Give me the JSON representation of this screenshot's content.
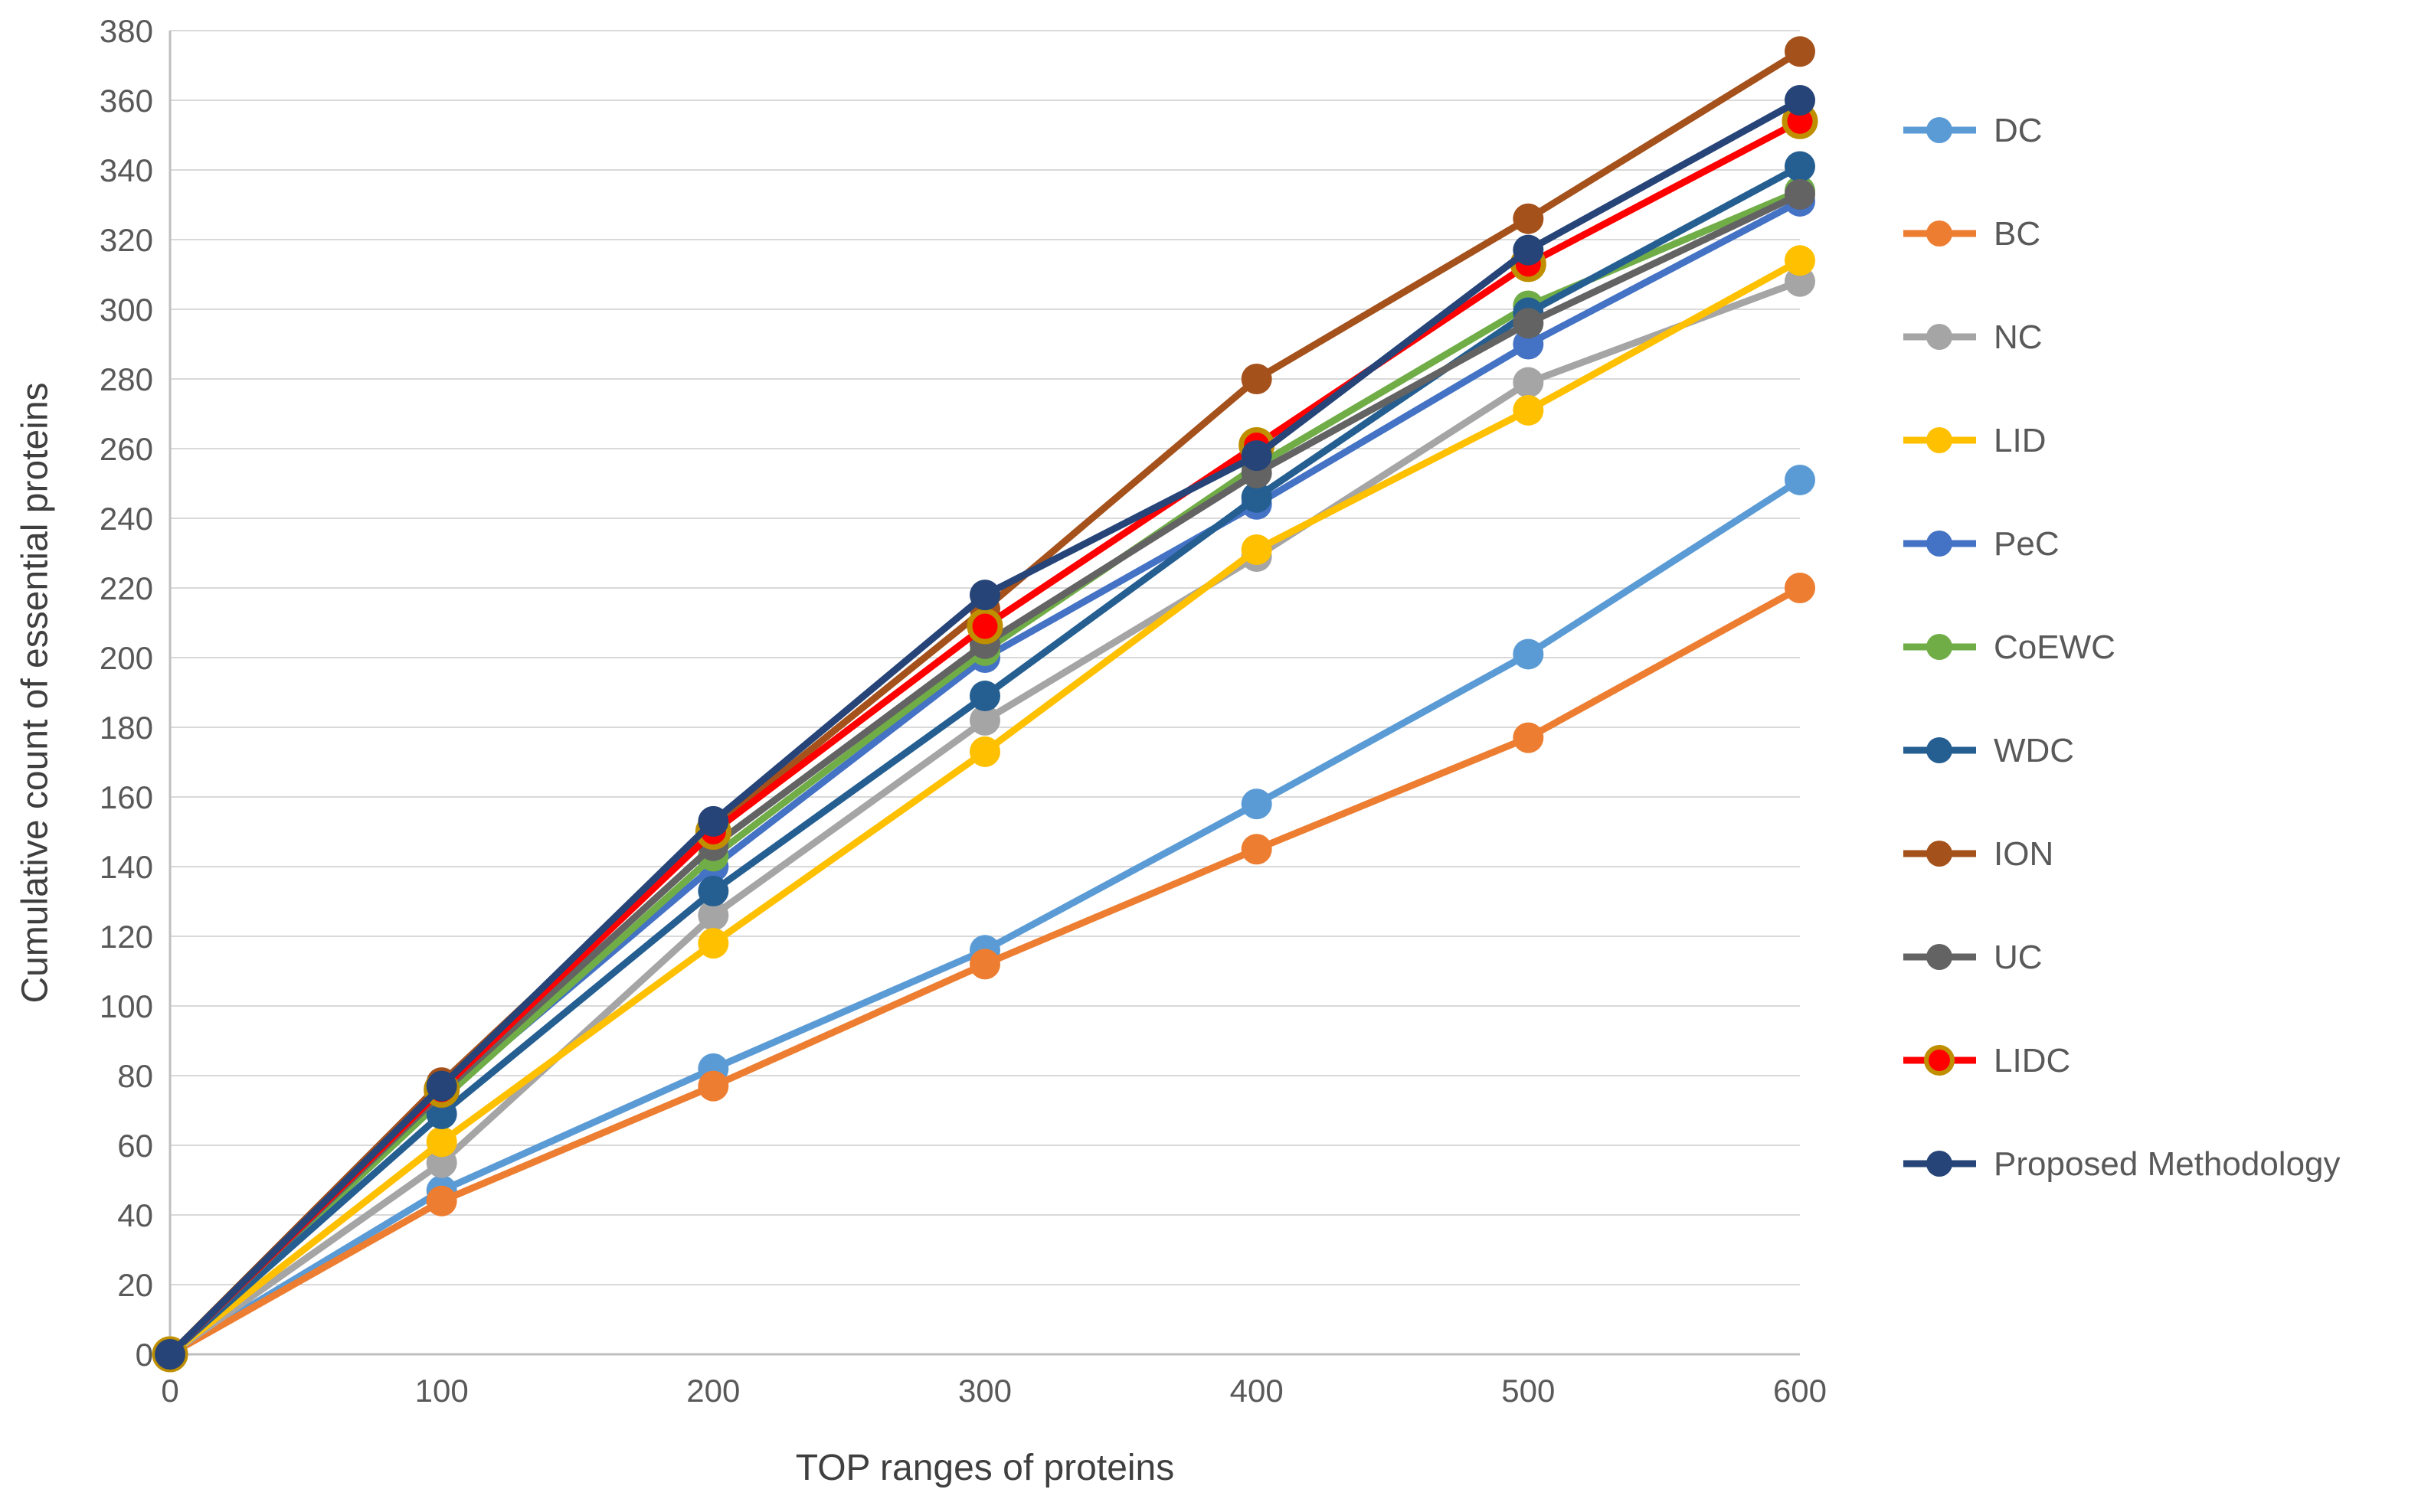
{
  "figure": {
    "kind": "excel-style line chart, no title, legend right"
  },
  "axes": {
    "x_title": "TOP ranges of proteins",
    "y_title": "Cumulative count of essential proteins",
    "x_ticks": [
      0,
      100,
      200,
      300,
      400,
      500,
      600
    ],
    "y_ticks": [
      0,
      20,
      40,
      60,
      80,
      100,
      120,
      140,
      160,
      180,
      200,
      220,
      240,
      260,
      280,
      300,
      320,
      340,
      360,
      380
    ],
    "grid_color": "#d9d9d9",
    "axis_line_color": "#bfbfbf",
    "tick_text_color": "#595959"
  },
  "legend": {
    "position": "right",
    "items": [
      "DC",
      "BC",
      "NC",
      "LID",
      "PeC",
      "CoEWC",
      "WDC",
      "ION",
      "UC",
      "LIDC",
      "Proposed Methodology"
    ]
  },
  "chart_data": {
    "type": "line",
    "title": "",
    "xlabel": "TOP ranges of proteins",
    "ylabel": "Cumulative count of essential proteins",
    "xlim": [
      0,
      600
    ],
    "ylim": [
      0,
      380
    ],
    "grid": true,
    "legend_position": "right",
    "x": [
      0,
      100,
      200,
      300,
      400,
      500,
      600
    ],
    "series": [
      {
        "name": "DC",
        "color": "#5B9BD5",
        "values": [
          0,
          47,
          82,
          116,
          158,
          201,
          251
        ]
      },
      {
        "name": "BC",
        "color": "#ED7D31",
        "values": [
          0,
          44,
          77,
          112,
          145,
          177,
          220
        ]
      },
      {
        "name": "NC",
        "color": "#A5A5A5",
        "values": [
          0,
          55,
          126,
          182,
          229,
          279,
          308
        ]
      },
      {
        "name": "LID",
        "color": "#FFC000",
        "values": [
          0,
          61,
          118,
          173,
          231,
          271,
          314
        ]
      },
      {
        "name": "PeC",
        "color": "#4472C4",
        "values": [
          0,
          74,
          140,
          200,
          244,
          290,
          331
        ]
      },
      {
        "name": "CoEWC",
        "color": "#70AD47",
        "values": [
          0,
          73,
          143,
          202,
          255,
          301,
          334
        ]
      },
      {
        "name": "WDC",
        "color": "#255E91",
        "values": [
          0,
          69,
          133,
          189,
          246,
          299,
          341
        ]
      },
      {
        "name": "ION",
        "color": "#A5511B",
        "values": [
          0,
          78,
          151,
          214,
          280,
          326,
          374
        ]
      },
      {
        "name": "UC",
        "color": "#636363",
        "values": [
          0,
          75,
          146,
          204,
          253,
          296,
          333
        ]
      },
      {
        "name": "LIDC",
        "color": "#FF0000",
        "marker_border": "#BF8F00",
        "values": [
          0,
          76,
          150,
          209,
          261,
          313,
          354
        ]
      },
      {
        "name": "Proposed Methodology",
        "color": "#264478",
        "values": [
          0,
          77,
          153,
          218,
          258,
          317,
          360
        ]
      }
    ]
  }
}
